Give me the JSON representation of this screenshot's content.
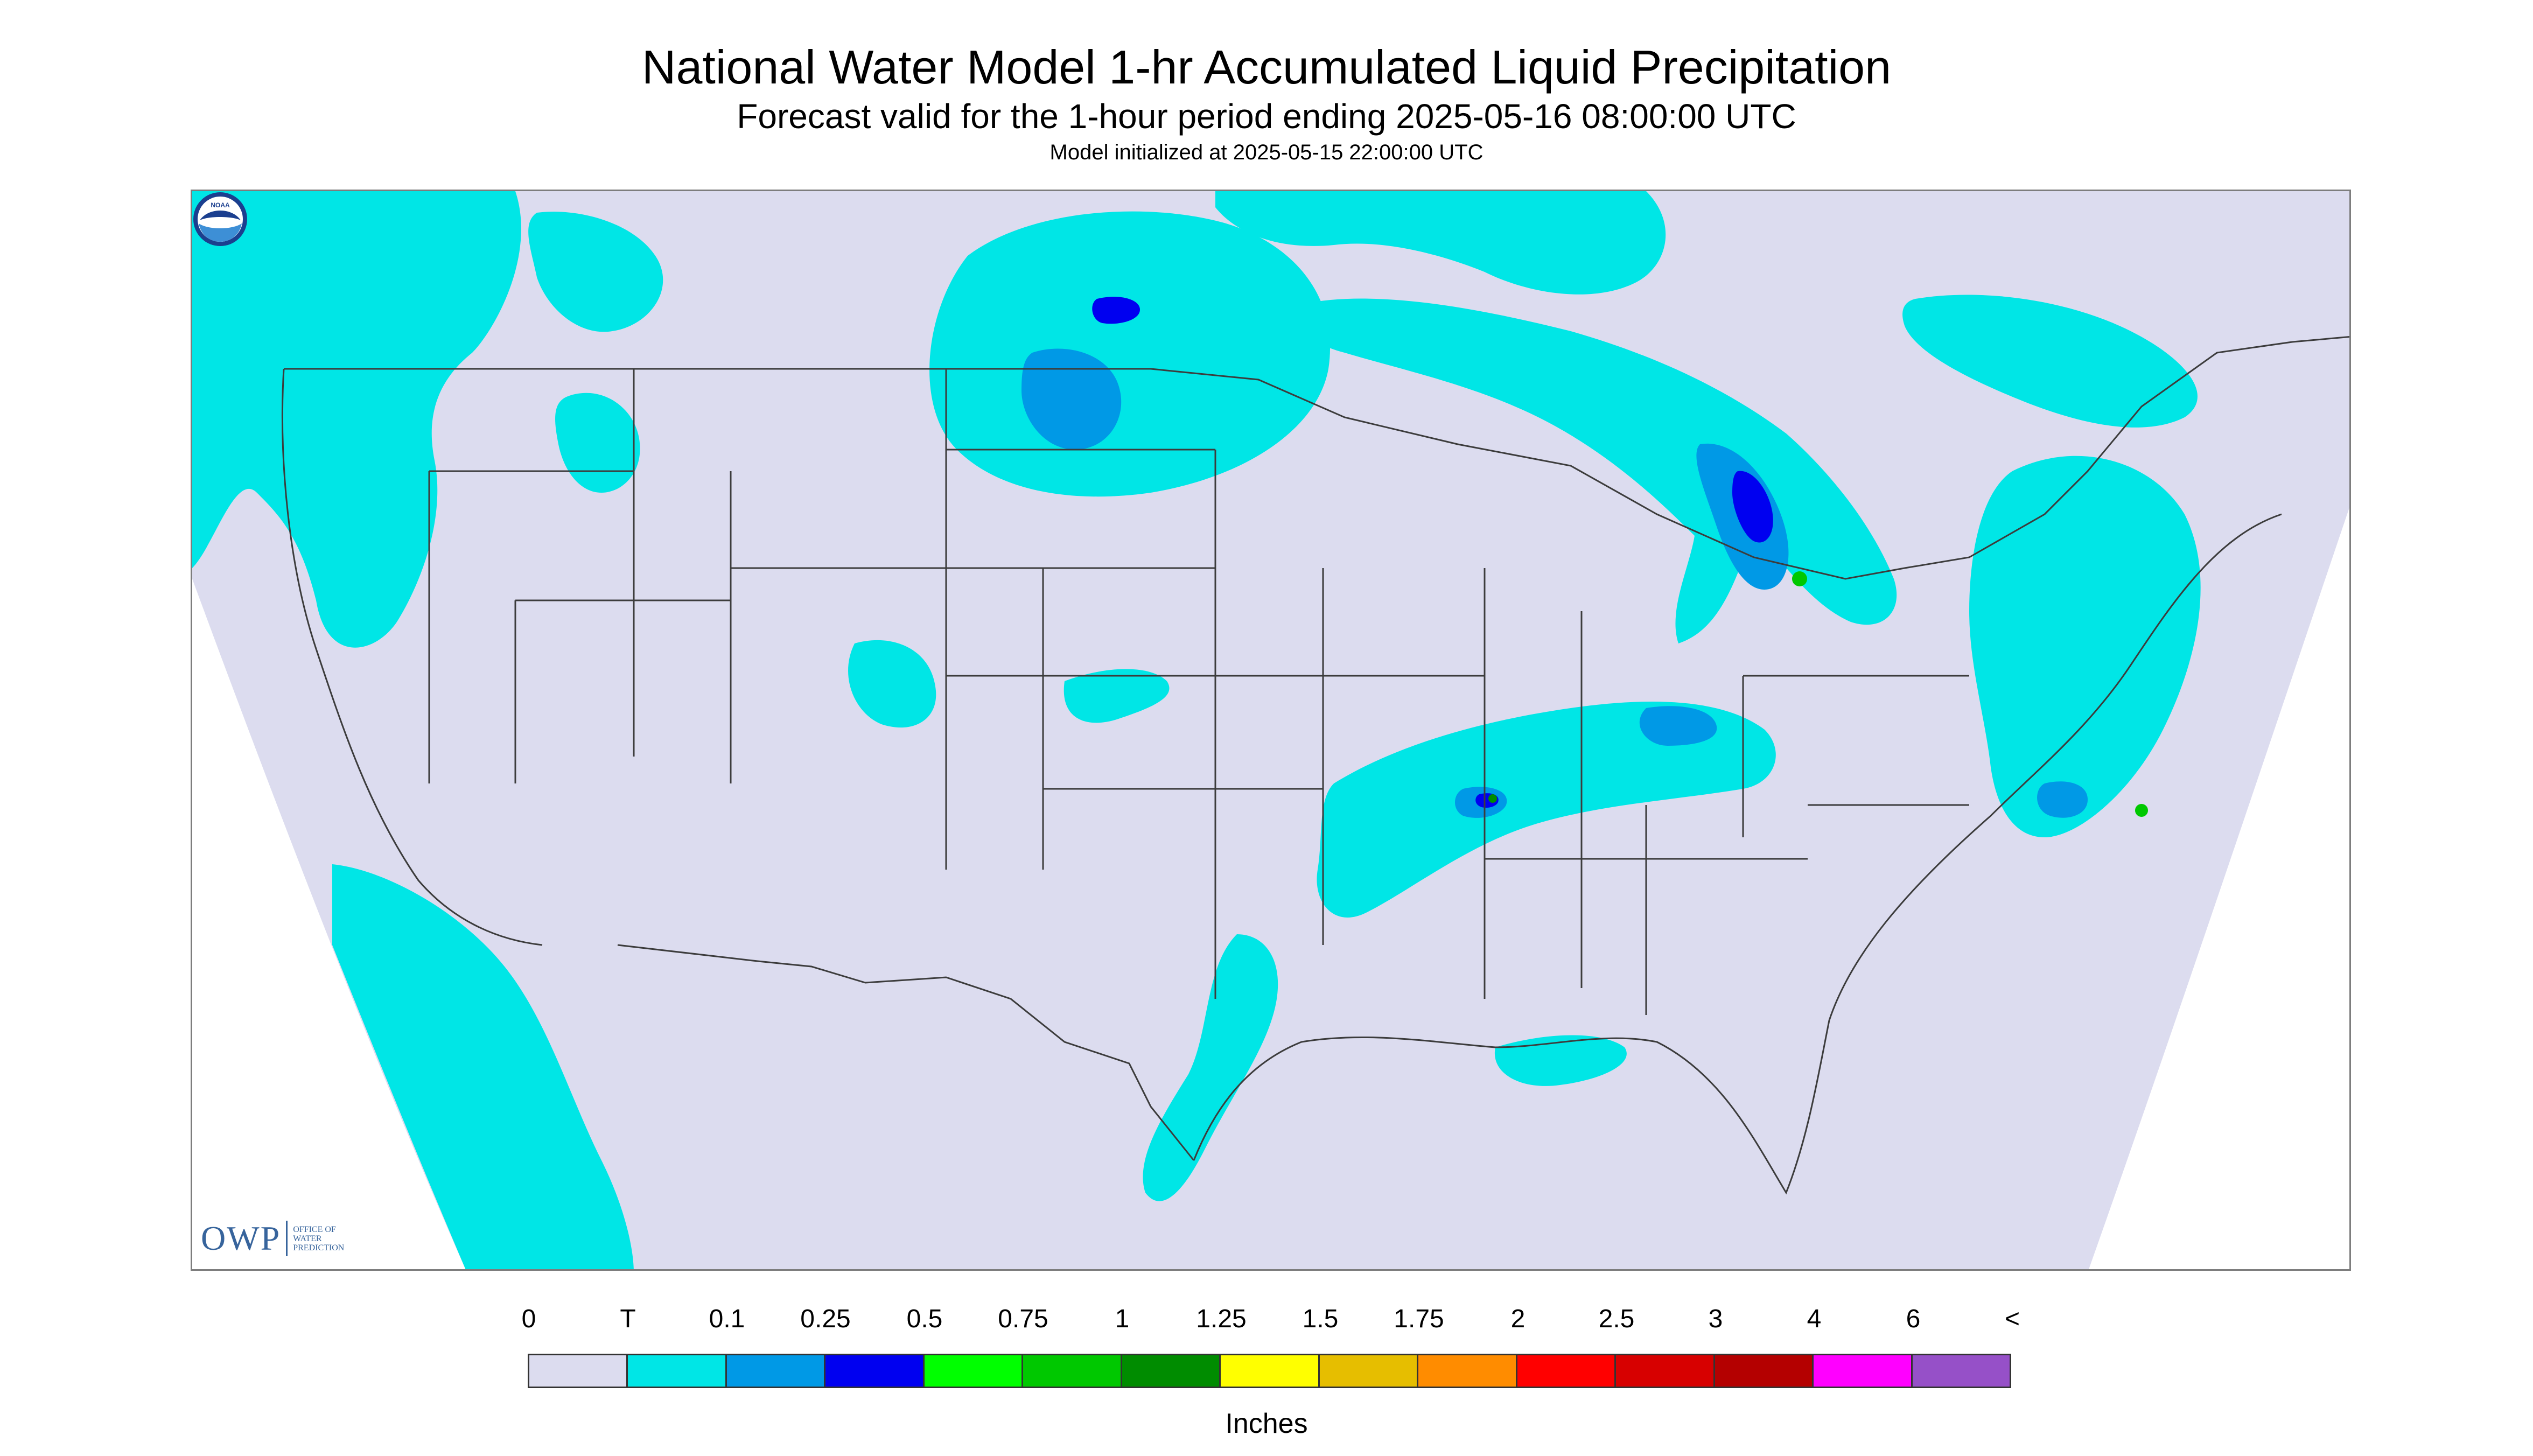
{
  "title": "National Water Model 1-hr Accumulated Liquid Precipitation",
  "subtitle": "Forecast valid for the 1-hour period ending 2025-05-16 08:00:00 UTC",
  "init_line": "Model initialized at 2025-05-15 22:00:00 UTC",
  "map": {
    "colors": {
      "no_data": "#ffffff",
      "background": "#dcdcef",
      "boundaries": "#3c3c3c",
      "frame": "#7d7d7d"
    }
  },
  "logos": {
    "owp_mark": "OWP",
    "owp_lines": [
      "OFFICE OF",
      "WATER",
      "PREDICTION"
    ],
    "noaa_text": "NOAA"
  },
  "legend": {
    "labels": [
      "0",
      "T",
      "0.1",
      "0.25",
      "0.5",
      "0.75",
      "1",
      "1.25",
      "1.5",
      "1.75",
      "2",
      "2.5",
      "3",
      "4",
      "6",
      "<"
    ],
    "colors": [
      "#dcdcef",
      "#00e6e6",
      "#0099e6",
      "#0000f0",
      "#00ff00",
      "#00c800",
      "#008c00",
      "#ffff00",
      "#e6be00",
      "#ff8c00",
      "#ff0000",
      "#d70000",
      "#b40000",
      "#ff00ff",
      "#9650c8"
    ],
    "units": "Inches"
  }
}
